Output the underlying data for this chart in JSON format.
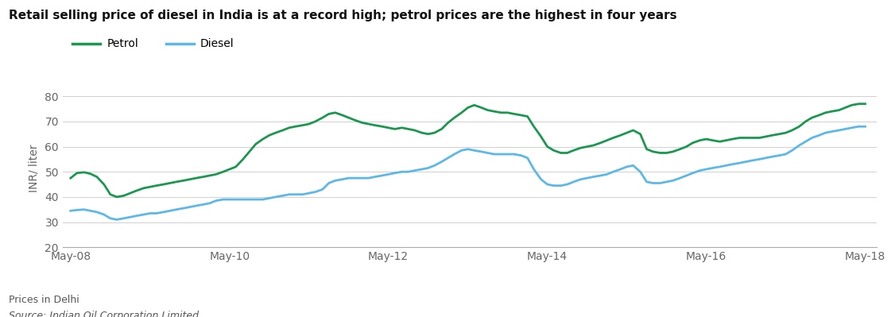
{
  "title": "Retail selling price of diesel in India is at a record high; petrol prices are the highest in four years",
  "ylabel": "INR/ liter",
  "footnote1": "Prices in Delhi",
  "footnote2": "Source: Indian Oil Corporation Limited",
  "petrol_color": "#1a9850",
  "diesel_color": "#5bb8e8",
  "background_color": "#ffffff",
  "grid_color": "#d0d0d0",
  "ylim": [
    20,
    83
  ],
  "yticks": [
    20,
    30,
    40,
    50,
    60,
    70,
    80
  ],
  "xtick_labels": [
    "May-08",
    "May-10",
    "May-12",
    "May-14",
    "May-16",
    "May-18"
  ],
  "petrol_data": [
    [
      0,
      47.5
    ],
    [
      0.08,
      49.5
    ],
    [
      0.17,
      49.8
    ],
    [
      0.25,
      49.2
    ],
    [
      0.33,
      48.0
    ],
    [
      0.42,
      45.0
    ],
    [
      0.5,
      41.0
    ],
    [
      0.58,
      40.0
    ],
    [
      0.67,
      40.5
    ],
    [
      0.75,
      41.5
    ],
    [
      0.83,
      42.5
    ],
    [
      0.92,
      43.5
    ],
    [
      1.0,
      44.0
    ],
    [
      1.08,
      44.5
    ],
    [
      1.17,
      45.0
    ],
    [
      1.25,
      45.5
    ],
    [
      1.33,
      46.0
    ],
    [
      1.42,
      46.5
    ],
    [
      1.5,
      47.0
    ],
    [
      1.58,
      47.5
    ],
    [
      1.67,
      48.0
    ],
    [
      1.75,
      48.5
    ],
    [
      1.83,
      49.0
    ],
    [
      1.92,
      50.0
    ],
    [
      2.0,
      51.0
    ],
    [
      2.08,
      52.0
    ],
    [
      2.17,
      55.0
    ],
    [
      2.25,
      58.0
    ],
    [
      2.33,
      61.0
    ],
    [
      2.42,
      63.0
    ],
    [
      2.5,
      64.5
    ],
    [
      2.58,
      65.5
    ],
    [
      2.67,
      66.5
    ],
    [
      2.75,
      67.5
    ],
    [
      2.83,
      68.0
    ],
    [
      2.92,
      68.5
    ],
    [
      3.0,
      69.0
    ],
    [
      3.08,
      70.0
    ],
    [
      3.17,
      71.5
    ],
    [
      3.25,
      73.0
    ],
    [
      3.33,
      73.5
    ],
    [
      3.42,
      72.5
    ],
    [
      3.5,
      71.5
    ],
    [
      3.58,
      70.5
    ],
    [
      3.67,
      69.5
    ],
    [
      3.75,
      69.0
    ],
    [
      3.83,
      68.5
    ],
    [
      3.92,
      68.0
    ],
    [
      4.0,
      67.5
    ],
    [
      4.08,
      67.0
    ],
    [
      4.17,
      67.5
    ],
    [
      4.25,
      67.0
    ],
    [
      4.33,
      66.5
    ],
    [
      4.42,
      65.5
    ],
    [
      4.5,
      65.0
    ],
    [
      4.58,
      65.5
    ],
    [
      4.67,
      67.0
    ],
    [
      4.75,
      69.5
    ],
    [
      4.83,
      71.5
    ],
    [
      4.92,
      73.5
    ],
    [
      5.0,
      75.5
    ],
    [
      5.08,
      76.5
    ],
    [
      5.17,
      75.5
    ],
    [
      5.25,
      74.5
    ],
    [
      5.33,
      74.0
    ],
    [
      5.42,
      73.5
    ],
    [
      5.5,
      73.5
    ],
    [
      5.58,
      73.0
    ],
    [
      5.67,
      72.5
    ],
    [
      5.75,
      72.0
    ],
    [
      5.83,
      68.0
    ],
    [
      5.92,
      64.0
    ],
    [
      6.0,
      60.0
    ],
    [
      6.08,
      58.5
    ],
    [
      6.17,
      57.5
    ],
    [
      6.25,
      57.5
    ],
    [
      6.33,
      58.5
    ],
    [
      6.42,
      59.5
    ],
    [
      6.5,
      60.0
    ],
    [
      6.58,
      60.5
    ],
    [
      6.67,
      61.5
    ],
    [
      6.75,
      62.5
    ],
    [
      6.83,
      63.5
    ],
    [
      6.92,
      64.5
    ],
    [
      7.0,
      65.5
    ],
    [
      7.08,
      66.5
    ],
    [
      7.17,
      65.0
    ],
    [
      7.25,
      59.0
    ],
    [
      7.33,
      58.0
    ],
    [
      7.42,
      57.5
    ],
    [
      7.5,
      57.5
    ],
    [
      7.58,
      58.0
    ],
    [
      7.67,
      59.0
    ],
    [
      7.75,
      60.0
    ],
    [
      7.83,
      61.5
    ],
    [
      7.92,
      62.5
    ],
    [
      8.0,
      63.0
    ],
    [
      8.08,
      62.5
    ],
    [
      8.17,
      62.0
    ],
    [
      8.25,
      62.5
    ],
    [
      8.33,
      63.0
    ],
    [
      8.42,
      63.5
    ],
    [
      8.5,
      63.5
    ],
    [
      8.58,
      63.5
    ],
    [
      8.67,
      63.5
    ],
    [
      8.75,
      64.0
    ],
    [
      8.83,
      64.5
    ],
    [
      8.92,
      65.0
    ],
    [
      9.0,
      65.5
    ],
    [
      9.08,
      66.5
    ],
    [
      9.17,
      68.0
    ],
    [
      9.25,
      70.0
    ],
    [
      9.33,
      71.5
    ],
    [
      9.42,
      72.5
    ],
    [
      9.5,
      73.5
    ],
    [
      9.58,
      74.0
    ],
    [
      9.67,
      74.5
    ],
    [
      9.75,
      75.5
    ],
    [
      9.83,
      76.5
    ],
    [
      9.92,
      77.0
    ],
    [
      10.0,
      77.0
    ]
  ],
  "diesel_data": [
    [
      0,
      34.5
    ],
    [
      0.08,
      34.8
    ],
    [
      0.17,
      35.0
    ],
    [
      0.25,
      34.5
    ],
    [
      0.33,
      34.0
    ],
    [
      0.42,
      33.0
    ],
    [
      0.5,
      31.5
    ],
    [
      0.58,
      31.0
    ],
    [
      0.67,
      31.5
    ],
    [
      0.75,
      32.0
    ],
    [
      0.83,
      32.5
    ],
    [
      0.92,
      33.0
    ],
    [
      1.0,
      33.5
    ],
    [
      1.08,
      33.5
    ],
    [
      1.17,
      34.0
    ],
    [
      1.25,
      34.5
    ],
    [
      1.33,
      35.0
    ],
    [
      1.42,
      35.5
    ],
    [
      1.5,
      36.0
    ],
    [
      1.58,
      36.5
    ],
    [
      1.67,
      37.0
    ],
    [
      1.75,
      37.5
    ],
    [
      1.83,
      38.5
    ],
    [
      1.92,
      39.0
    ],
    [
      2.0,
      39.0
    ],
    [
      2.08,
      39.0
    ],
    [
      2.17,
      39.0
    ],
    [
      2.25,
      39.0
    ],
    [
      2.33,
      39.0
    ],
    [
      2.42,
      39.0
    ],
    [
      2.5,
      39.5
    ],
    [
      2.58,
      40.0
    ],
    [
      2.67,
      40.5
    ],
    [
      2.75,
      41.0
    ],
    [
      2.83,
      41.0
    ],
    [
      2.92,
      41.0
    ],
    [
      3.0,
      41.5
    ],
    [
      3.08,
      42.0
    ],
    [
      3.17,
      43.0
    ],
    [
      3.25,
      45.5
    ],
    [
      3.33,
      46.5
    ],
    [
      3.42,
      47.0
    ],
    [
      3.5,
      47.5
    ],
    [
      3.58,
      47.5
    ],
    [
      3.67,
      47.5
    ],
    [
      3.75,
      47.5
    ],
    [
      3.83,
      48.0
    ],
    [
      3.92,
      48.5
    ],
    [
      4.0,
      49.0
    ],
    [
      4.08,
      49.5
    ],
    [
      4.17,
      50.0
    ],
    [
      4.25,
      50.0
    ],
    [
      4.33,
      50.5
    ],
    [
      4.42,
      51.0
    ],
    [
      4.5,
      51.5
    ],
    [
      4.58,
      52.5
    ],
    [
      4.67,
      54.0
    ],
    [
      4.75,
      55.5
    ],
    [
      4.83,
      57.0
    ],
    [
      4.92,
      58.5
    ],
    [
      5.0,
      59.0
    ],
    [
      5.08,
      58.5
    ],
    [
      5.17,
      58.0
    ],
    [
      5.25,
      57.5
    ],
    [
      5.33,
      57.0
    ],
    [
      5.42,
      57.0
    ],
    [
      5.5,
      57.0
    ],
    [
      5.58,
      57.0
    ],
    [
      5.67,
      56.5
    ],
    [
      5.75,
      55.5
    ],
    [
      5.83,
      51.0
    ],
    [
      5.92,
      47.0
    ],
    [
      6.0,
      45.0
    ],
    [
      6.08,
      44.5
    ],
    [
      6.17,
      44.5
    ],
    [
      6.25,
      45.0
    ],
    [
      6.33,
      46.0
    ],
    [
      6.42,
      47.0
    ],
    [
      6.5,
      47.5
    ],
    [
      6.58,
      48.0
    ],
    [
      6.67,
      48.5
    ],
    [
      6.75,
      49.0
    ],
    [
      6.83,
      50.0
    ],
    [
      6.92,
      51.0
    ],
    [
      7.0,
      52.0
    ],
    [
      7.08,
      52.5
    ],
    [
      7.17,
      50.0
    ],
    [
      7.25,
      46.0
    ],
    [
      7.33,
      45.5
    ],
    [
      7.42,
      45.5
    ],
    [
      7.5,
      46.0
    ],
    [
      7.58,
      46.5
    ],
    [
      7.67,
      47.5
    ],
    [
      7.75,
      48.5
    ],
    [
      7.83,
      49.5
    ],
    [
      7.92,
      50.5
    ],
    [
      8.0,
      51.0
    ],
    [
      8.08,
      51.5
    ],
    [
      8.17,
      52.0
    ],
    [
      8.25,
      52.5
    ],
    [
      8.33,
      53.0
    ],
    [
      8.42,
      53.5
    ],
    [
      8.5,
      54.0
    ],
    [
      8.58,
      54.5
    ],
    [
      8.67,
      55.0
    ],
    [
      8.75,
      55.5
    ],
    [
      8.83,
      56.0
    ],
    [
      8.92,
      56.5
    ],
    [
      9.0,
      57.0
    ],
    [
      9.08,
      58.5
    ],
    [
      9.17,
      60.5
    ],
    [
      9.25,
      62.0
    ],
    [
      9.33,
      63.5
    ],
    [
      9.42,
      64.5
    ],
    [
      9.5,
      65.5
    ],
    [
      9.58,
      66.0
    ],
    [
      9.67,
      66.5
    ],
    [
      9.75,
      67.0
    ],
    [
      9.83,
      67.5
    ],
    [
      9.92,
      68.0
    ],
    [
      10.0,
      68.0
    ]
  ]
}
